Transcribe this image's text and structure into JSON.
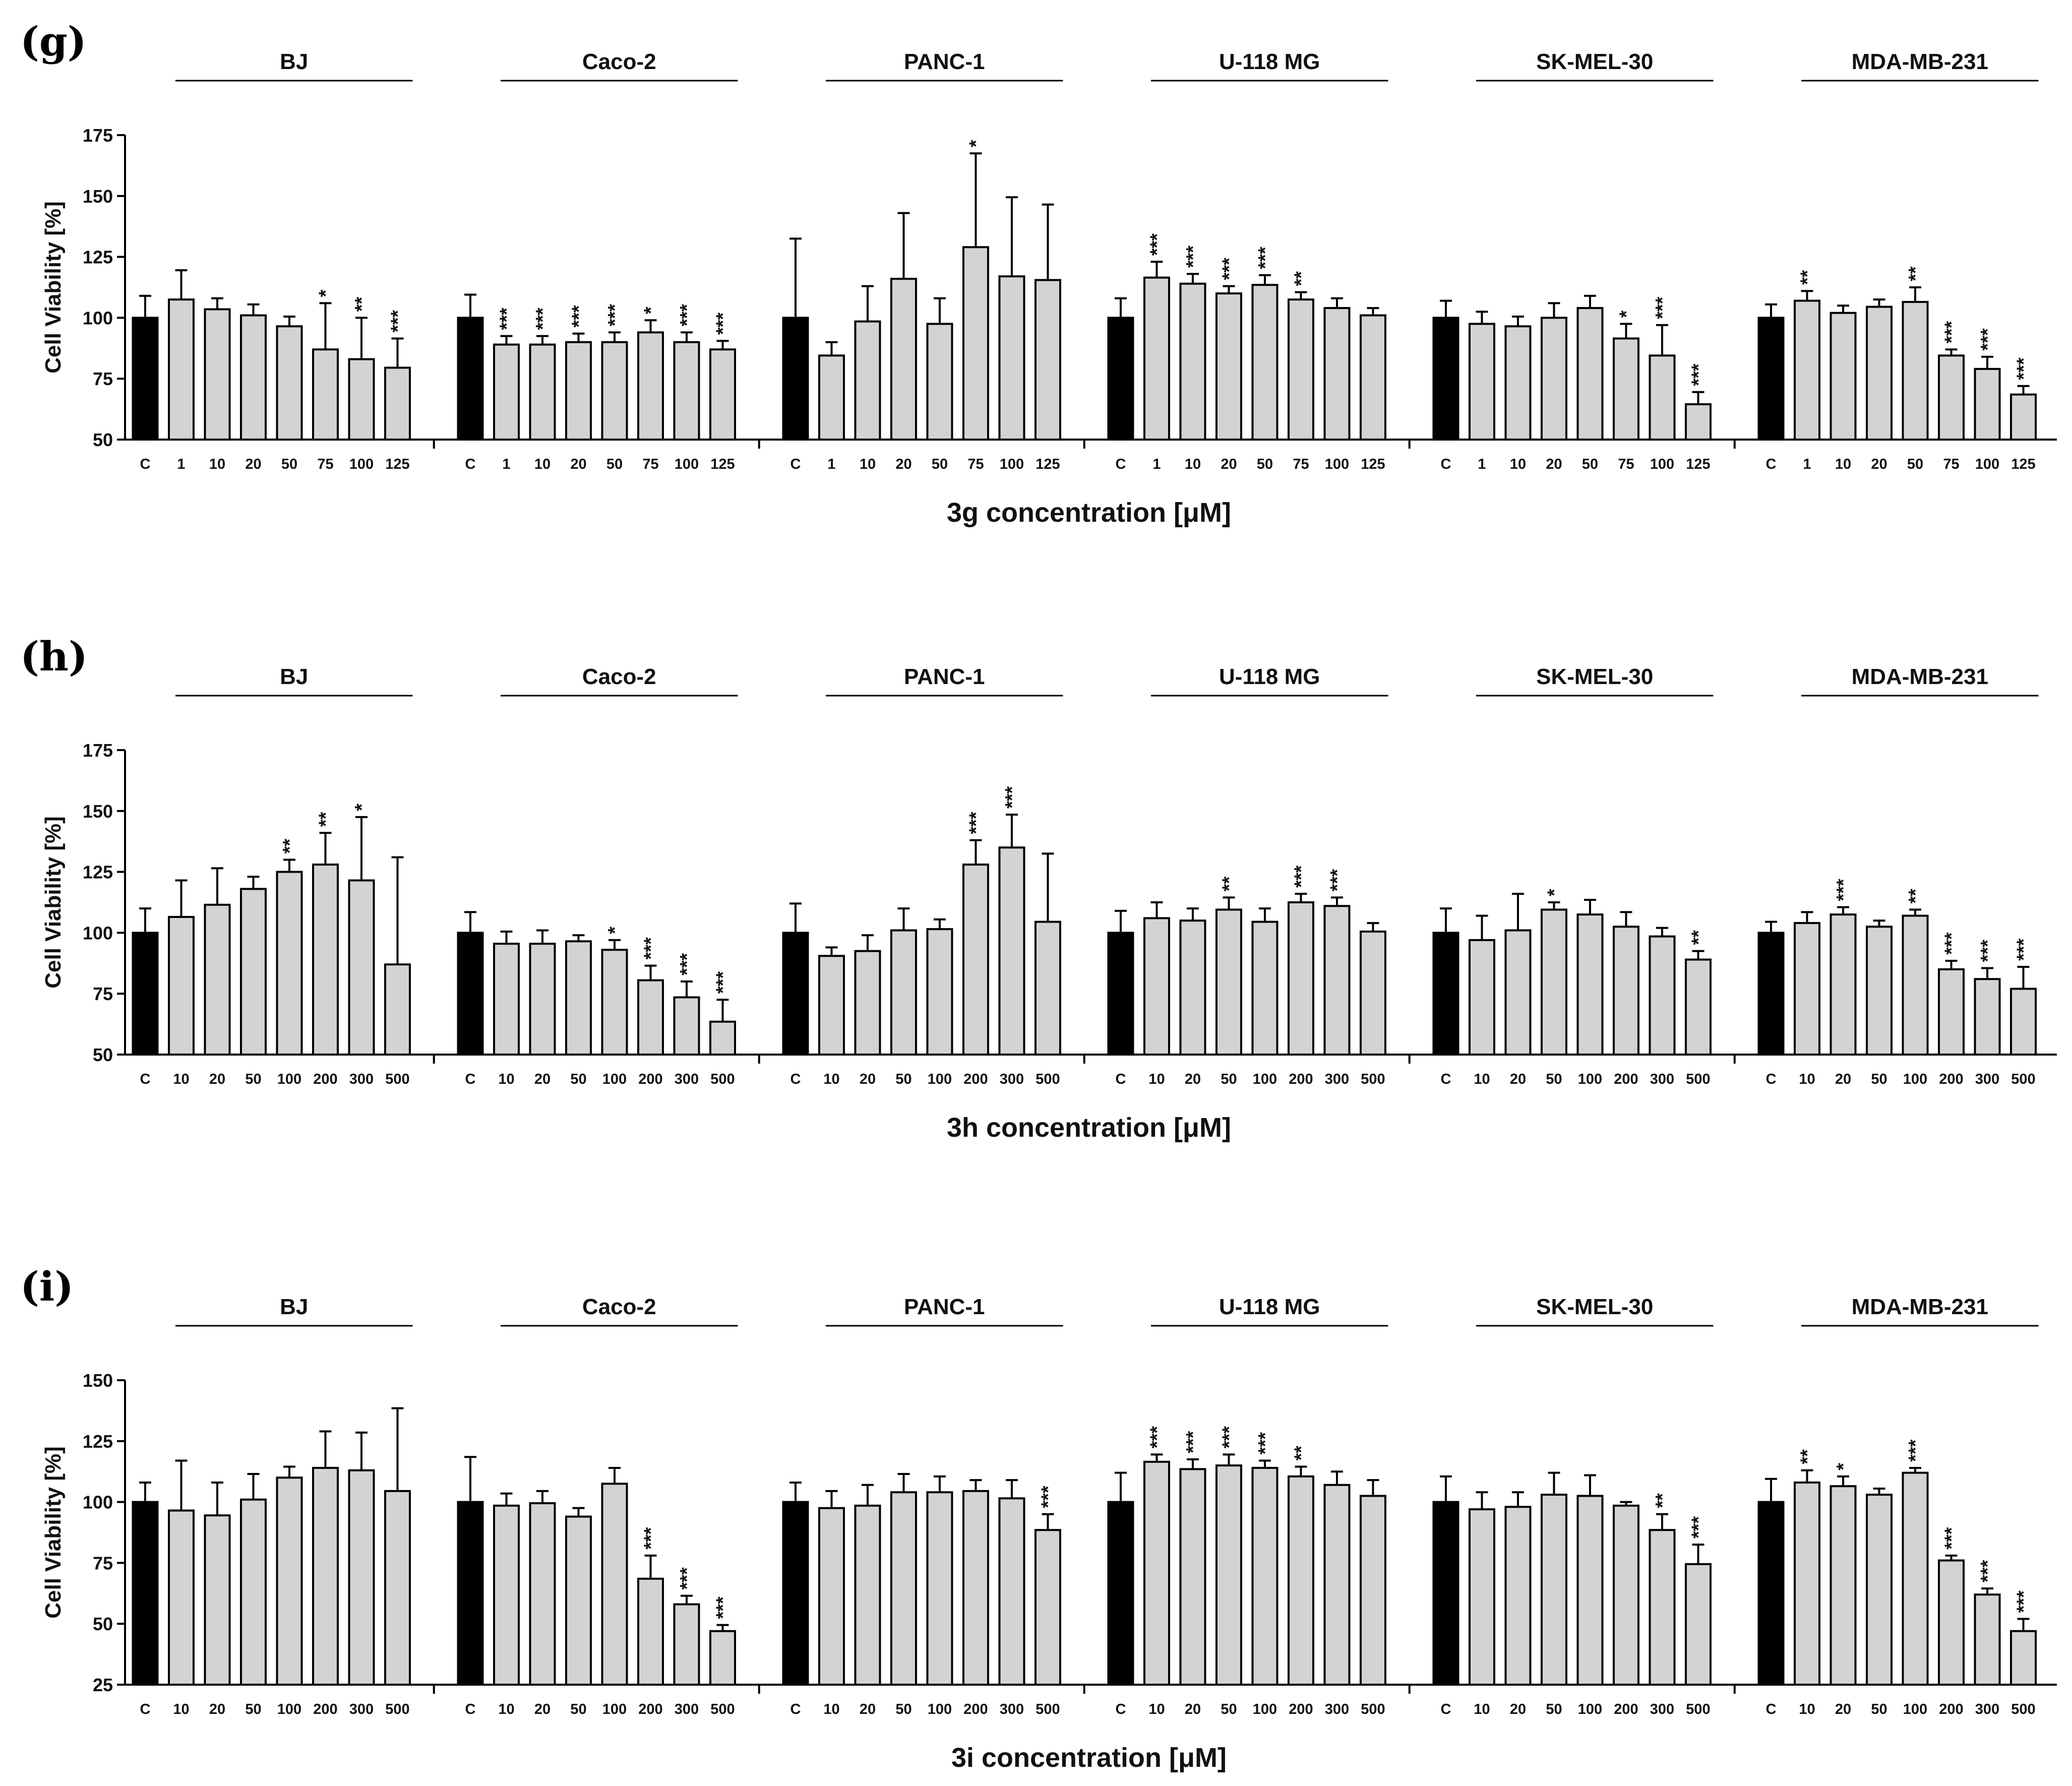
{
  "chart_data": [
    {
      "type": "bar",
      "panel": "(g)",
      "xlabel": "3g concentration [μM]",
      "ylabel": "Cell Viability [%]",
      "ylim": [
        50,
        175
      ],
      "yticks": [
        50,
        75,
        100,
        125,
        150,
        175
      ],
      "control_color": "#000000",
      "bar_color": "#d3d3d3",
      "groups": [
        {
          "name": "BJ",
          "categories": [
            "C",
            "1",
            "10",
            "20",
            "50",
            "75",
            "100",
            "125"
          ],
          "values": [
            100,
            107.5,
            103.5,
            101,
            96.5,
            87,
            83,
            79.5
          ],
          "errors": [
            9,
            12,
            4.5,
            4.5,
            4,
            19,
            17,
            12
          ],
          "sig": [
            "",
            "",
            "",
            "",
            "",
            "*",
            "**",
            "***"
          ]
        },
        {
          "name": "Caco-2",
          "categories": [
            "C",
            "1",
            "10",
            "20",
            "50",
            "75",
            "100",
            "125"
          ],
          "values": [
            100,
            89,
            89,
            90,
            90,
            94,
            90,
            87
          ],
          "errors": [
            9.5,
            3.5,
            3.5,
            3.5,
            4,
            5,
            4,
            3.5
          ],
          "sig": [
            "",
            "***",
            "***",
            "***",
            "***",
            "*",
            "***",
            "***"
          ]
        },
        {
          "name": "PANC-1",
          "categories": [
            "C",
            "1",
            "10",
            "20",
            "50",
            "75",
            "100",
            "125"
          ],
          "values": [
            100,
            84.5,
            98.5,
            116,
            97.5,
            129,
            117,
            115.5
          ],
          "errors": [
            32.5,
            5.5,
            14.5,
            27,
            10.5,
            38.5,
            32.5,
            31
          ],
          "sig": [
            "",
            "",
            "",
            "",
            "",
            "*",
            "",
            ""
          ]
        },
        {
          "name": "U-118 MG",
          "categories": [
            "C",
            "1",
            "10",
            "20",
            "50",
            "75",
            "100",
            "125"
          ],
          "values": [
            100,
            116.5,
            114,
            110,
            113.5,
            107.5,
            104,
            101
          ],
          "errors": [
            8,
            6.5,
            4,
            3,
            4,
            3,
            4,
            3
          ],
          "sig": [
            "",
            "***",
            "***",
            "***",
            "***",
            "**",
            "",
            ""
          ]
        },
        {
          "name": "SK-MEL-30",
          "categories": [
            "C",
            "1",
            "10",
            "20",
            "50",
            "75",
            "100",
            "125"
          ],
          "values": [
            100,
            97.5,
            96.5,
            100,
            104,
            91.5,
            84.5,
            64.5
          ],
          "errors": [
            7,
            5,
            4,
            6,
            5,
            6,
            12.5,
            5
          ],
          "sig": [
            "",
            "",
            "",
            "",
            "",
            "*",
            "***",
            "***"
          ]
        },
        {
          "name": "MDA-MB-231",
          "categories": [
            "C",
            "1",
            "10",
            "20",
            "50",
            "75",
            "100",
            "125"
          ],
          "values": [
            100,
            107,
            102,
            104.5,
            106.5,
            84.5,
            79,
            68.5
          ],
          "errors": [
            5.5,
            4,
            3,
            3,
            6,
            2.5,
            5,
            3.5
          ],
          "sig": [
            "",
            "**",
            "",
            "",
            "**",
            "***",
            "***",
            "***"
          ]
        }
      ]
    },
    {
      "type": "bar",
      "panel": "(h)",
      "xlabel": "3h concentration [μM]",
      "ylabel": "Cell Viability [%]",
      "ylim": [
        50,
        175
      ],
      "yticks": [
        50,
        75,
        100,
        125,
        150,
        175
      ],
      "control_color": "#000000",
      "bar_color": "#d3d3d3",
      "groups": [
        {
          "name": "BJ",
          "categories": [
            "C",
            "10",
            "20",
            "50",
            "100",
            "200",
            "300",
            "500"
          ],
          "values": [
            100,
            106.5,
            111.5,
            118,
            125,
            128,
            121.5,
            87
          ],
          "errors": [
            10,
            15,
            15,
            5,
            5,
            13,
            26,
            44
          ],
          "sig": [
            "",
            "",
            "",
            "",
            "**",
            "**",
            "*",
            ""
          ]
        },
        {
          "name": "Caco-2",
          "categories": [
            "C",
            "10",
            "20",
            "50",
            "100",
            "200",
            "300",
            "500"
          ],
          "values": [
            100,
            95.5,
            95.5,
            96.5,
            93,
            80.5,
            73.5,
            63.5
          ],
          "errors": [
            8.5,
            5,
            5.5,
            2.5,
            4,
            6,
            6.5,
            9
          ],
          "sig": [
            "",
            "",
            "",
            "",
            "*",
            "***",
            "***",
            "***"
          ]
        },
        {
          "name": "PANC-1",
          "categories": [
            "C",
            "10",
            "20",
            "50",
            "100",
            "200",
            "300",
            "500"
          ],
          "values": [
            100,
            90.5,
            92.5,
            101,
            101.5,
            128,
            135,
            104.5
          ],
          "errors": [
            12,
            3.5,
            6.5,
            9,
            4,
            10,
            13.5,
            28
          ],
          "sig": [
            "",
            "",
            "",
            "",
            "",
            "***",
            "***",
            ""
          ]
        },
        {
          "name": "U-118 MG",
          "categories": [
            "C",
            "10",
            "20",
            "50",
            "100",
            "200",
            "300",
            "500"
          ],
          "values": [
            100,
            106,
            105,
            109.5,
            104.5,
            112.5,
            111,
            100.5
          ],
          "errors": [
            9,
            6.5,
            5,
            5,
            5.5,
            3.5,
            3.5,
            3.5
          ],
          "sig": [
            "",
            "",
            "",
            "**",
            "",
            "***",
            "***",
            ""
          ]
        },
        {
          "name": "SK-MEL-30",
          "categories": [
            "C",
            "10",
            "20",
            "50",
            "100",
            "200",
            "300",
            "500"
          ],
          "values": [
            100,
            97,
            101,
            109.5,
            107.5,
            102.5,
            98.5,
            89
          ],
          "errors": [
            10,
            10,
            15,
            3,
            6,
            6,
            3.5,
            3.5
          ],
          "sig": [
            "",
            "",
            "",
            "*",
            "",
            "",
            "",
            "**"
          ]
        },
        {
          "name": "MDA-MB-231",
          "categories": [
            "C",
            "10",
            "20",
            "50",
            "100",
            "200",
            "300",
            "500"
          ],
          "values": [
            100,
            104,
            107.5,
            102.5,
            107,
            85,
            81,
            77
          ],
          "errors": [
            4.5,
            4.5,
            3,
            2.5,
            2.5,
            3.5,
            4.5,
            9
          ],
          "sig": [
            "",
            "",
            "***",
            "",
            "**",
            "***",
            "***",
            "***"
          ]
        }
      ]
    },
    {
      "type": "bar",
      "panel": "(i)",
      "xlabel": "3i concentration [μM]",
      "ylabel": "Cell Viability [%]",
      "ylim": [
        25,
        150
      ],
      "yticks": [
        25,
        50,
        75,
        100,
        125,
        150
      ],
      "control_color": "#000000",
      "bar_color": "#d3d3d3",
      "groups": [
        {
          "name": "BJ",
          "categories": [
            "C",
            "10",
            "20",
            "50",
            "100",
            "200",
            "300",
            "500"
          ],
          "values": [
            100,
            96.5,
            94.5,
            101,
            110,
            114,
            113,
            104.5
          ],
          "errors": [
            8,
            20.5,
            13.5,
            10.5,
            4.5,
            15,
            15.5,
            34
          ],
          "sig": [
            "",
            "",
            "",
            "",
            "",
            "",
            "",
            ""
          ]
        },
        {
          "name": "Caco-2",
          "categories": [
            "C",
            "10",
            "20",
            "50",
            "100",
            "200",
            "300",
            "500"
          ],
          "values": [
            100,
            98.5,
            99.5,
            94,
            107.5,
            68.5,
            58,
            47
          ],
          "errors": [
            18.5,
            5,
            5,
            3.5,
            6.5,
            9.5,
            3.5,
            2.5
          ],
          "sig": [
            "",
            "",
            "",
            "",
            "",
            "***",
            "***",
            "***"
          ]
        },
        {
          "name": "PANC-1",
          "categories": [
            "C",
            "10",
            "20",
            "50",
            "100",
            "200",
            "300",
            "500"
          ],
          "values": [
            100,
            97.5,
            98.5,
            104,
            104,
            104.5,
            101.5,
            88.5
          ],
          "errors": [
            8,
            7,
            8.5,
            7.5,
            6.5,
            4.5,
            7.5,
            6.5
          ],
          "sig": [
            "",
            "",
            "",
            "",
            "",
            "",
            "",
            "***"
          ]
        },
        {
          "name": "U-118 MG",
          "categories": [
            "C",
            "10",
            "20",
            "50",
            "100",
            "200",
            "300",
            "500"
          ],
          "values": [
            100,
            116.5,
            113.5,
            115,
            114,
            110.5,
            107,
            102.5
          ],
          "errors": [
            12,
            3,
            4,
            4.5,
            3,
            4,
            5.5,
            6.5
          ],
          "sig": [
            "",
            "***",
            "***",
            "***",
            "***",
            "**",
            "",
            ""
          ]
        },
        {
          "name": "SK-MEL-30",
          "categories": [
            "C",
            "10",
            "20",
            "50",
            "100",
            "200",
            "300",
            "500"
          ],
          "values": [
            100,
            97,
            98,
            103,
            102.5,
            98.5,
            88.5,
            74.5
          ],
          "errors": [
            10.5,
            7,
            6,
            9,
            8.5,
            1.5,
            6.5,
            8
          ],
          "sig": [
            "",
            "",
            "",
            "",
            "",
            "",
            "**",
            "***"
          ]
        },
        {
          "name": "MDA-MB-231",
          "categories": [
            "C",
            "10",
            "20",
            "50",
            "100",
            "200",
            "300",
            "500"
          ],
          "values": [
            100,
            108,
            106.5,
            103,
            112,
            76,
            62,
            47
          ],
          "errors": [
            9.5,
            5,
            4,
            2.5,
            2,
            2,
            2.5,
            5
          ],
          "sig": [
            "",
            "**",
            "*",
            "",
            "***",
            "***",
            "***",
            "***"
          ]
        }
      ]
    }
  ]
}
